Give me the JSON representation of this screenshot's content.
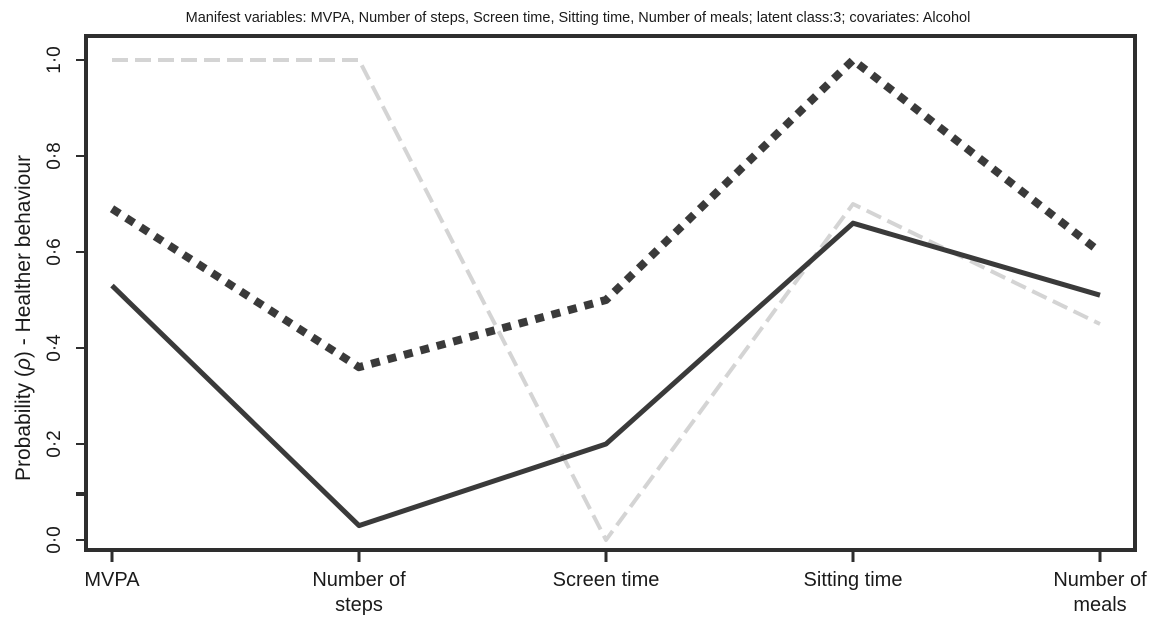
{
  "chart_data": {
    "type": "line",
    "title": "Manifest variables: MVPA, Number of steps, Screen time, Sitting time, Number of meals; latent class:3; covariates: Alcohol",
    "xlabel": "",
    "ylabel_prefix": "Probability (",
    "ylabel_symbol": "ρ",
    "ylabel_suffix": ") - Healther behaviour",
    "categories": [
      "MVPA",
      "Number of steps",
      "Screen time",
      "Sitting time",
      "Number of meals"
    ],
    "category_lines": [
      [
        "MVPA"
      ],
      [
        "Number of",
        "steps"
      ],
      [
        "Screen time"
      ],
      [
        "Sitting time"
      ],
      [
        "Number of",
        "meals"
      ]
    ],
    "ylim": [
      0,
      1
    ],
    "yticks": [
      0,
      0.2,
      0.4,
      0.6,
      0.8,
      1.0
    ],
    "ytick_labels": [
      "0·0",
      "0·2",
      "0·4",
      "0·6",
      "0·8",
      "1·0"
    ],
    "grid": false,
    "series": [
      {
        "style": "solid",
        "color": "#3a3a3a",
        "values": [
          0.53,
          0.03,
          0.2,
          0.66,
          0.51
        ]
      },
      {
        "style": "dotted",
        "color": "#3a3a3a",
        "values": [
          0.69,
          0.36,
          0.5,
          1.0,
          0.6
        ]
      },
      {
        "style": "dashed",
        "color": "#d4d4d4",
        "values": [
          1.0,
          1.0,
          0.0,
          0.7,
          0.45
        ]
      }
    ]
  }
}
